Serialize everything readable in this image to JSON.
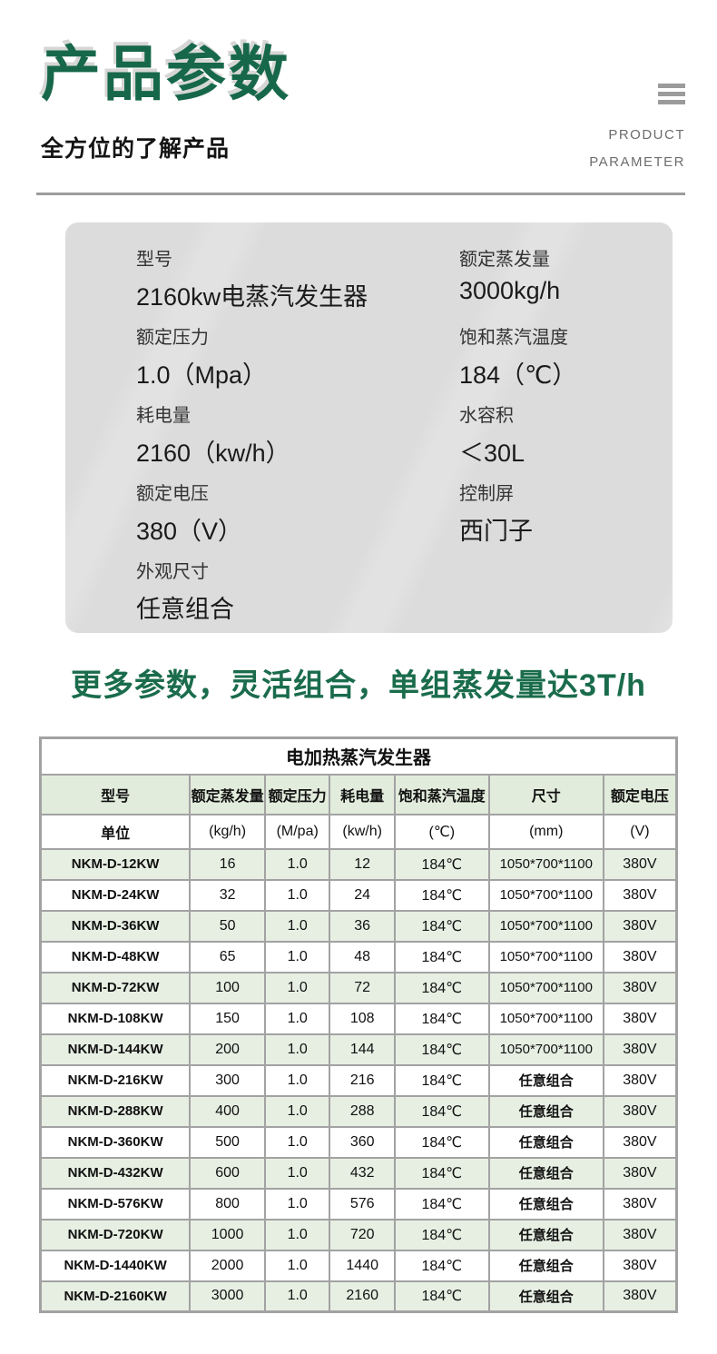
{
  "header": {
    "title": "产品参数",
    "subtitle": "全方位的了解产品",
    "eyebrow_line1": "PRODUCT",
    "eyebrow_line2": "PARAMETER",
    "menu_icon": "hamburger-menu-icon"
  },
  "colors": {
    "accent_green": "#17684a",
    "headline_green": "#1a6c4c",
    "card_bg": "#dcdcdc",
    "table_border": "#a2a2a2",
    "table_header_bg": "#e2ecdc",
    "table_row_green": "#e7efe3",
    "divider_gray": "#9c9c9c"
  },
  "spec_card": {
    "items": [
      {
        "label": "型号",
        "value": "2160kw电蒸汽发生器"
      },
      {
        "label": "额定蒸发量",
        "value": "3000kg/h"
      },
      {
        "label": "额定压力",
        "value": "1.0（Mpa）"
      },
      {
        "label": "饱和蒸汽温度",
        "value": "184（℃）"
      },
      {
        "label": "耗电量",
        "value": "2160（kw/h）"
      },
      {
        "label": "水容积",
        "value": "＜30L"
      },
      {
        "label": "额定电压",
        "value": "380（V）"
      },
      {
        "label": "控制屏",
        "value": "西门子"
      },
      {
        "label": "外观尺寸",
        "value": "任意组合"
      }
    ]
  },
  "headline": "更多参数，灵活组合，单组蒸发量达3T/h",
  "table": {
    "title": "电加热蒸汽发生器",
    "headers": [
      "型号",
      "额定蒸发量",
      "额定压力",
      "耗电量",
      "饱和蒸汽温度",
      "尺寸",
      "额定电压"
    ],
    "units": [
      "单位",
      "(kg/h)",
      "(M/pa)",
      "(kw/h)",
      "(℃)",
      "(mm)",
      "(V)"
    ],
    "rows": [
      [
        "NKM-D-12KW",
        "16",
        "1.0",
        "12",
        "184℃",
        "1050*700*1100",
        "380V"
      ],
      [
        "NKM-D-24KW",
        "32",
        "1.0",
        "24",
        "184℃",
        "1050*700*1100",
        "380V"
      ],
      [
        "NKM-D-36KW",
        "50",
        "1.0",
        "36",
        "184℃",
        "1050*700*1100",
        "380V"
      ],
      [
        "NKM-D-48KW",
        "65",
        "1.0",
        "48",
        "184℃",
        "1050*700*1100",
        "380V"
      ],
      [
        "NKM-D-72KW",
        "100",
        "1.0",
        "72",
        "184℃",
        "1050*700*1100",
        "380V"
      ],
      [
        "NKM-D-108KW",
        "150",
        "1.0",
        "108",
        "184℃",
        "1050*700*1100",
        "380V"
      ],
      [
        "NKM-D-144KW",
        "200",
        "1.0",
        "144",
        "184℃",
        "1050*700*1100",
        "380V"
      ],
      [
        "NKM-D-216KW",
        "300",
        "1.0",
        "216",
        "184℃",
        "任意组合",
        "380V"
      ],
      [
        "NKM-D-288KW",
        "400",
        "1.0",
        "288",
        "184℃",
        "任意组合",
        "380V"
      ],
      [
        "NKM-D-360KW",
        "500",
        "1.0",
        "360",
        "184℃",
        "任意组合",
        "380V"
      ],
      [
        "NKM-D-432KW",
        "600",
        "1.0",
        "432",
        "184℃",
        "任意组合",
        "380V"
      ],
      [
        "NKM-D-576KW",
        "800",
        "1.0",
        "576",
        "184℃",
        "任意组合",
        "380V"
      ],
      [
        "NKM-D-720KW",
        "1000",
        "1.0",
        "720",
        "184℃",
        "任意组合",
        "380V"
      ],
      [
        "NKM-D-1440KW",
        "2000",
        "1.0",
        "1440",
        "184℃",
        "任意组合",
        "380V"
      ],
      [
        "NKM-D-2160KW",
        "3000",
        "1.0",
        "2160",
        "184℃",
        "任意组合",
        "380V"
      ]
    ]
  }
}
